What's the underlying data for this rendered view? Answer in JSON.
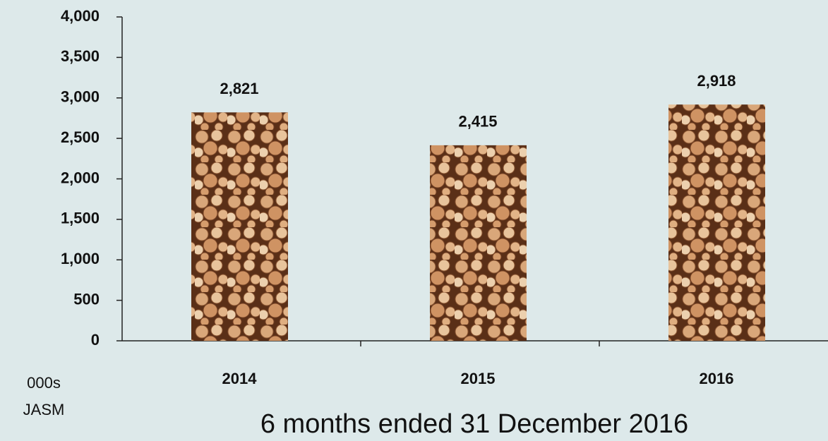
{
  "chart_data": {
    "type": "bar",
    "categories": [
      "2014",
      "2015",
      "2016"
    ],
    "values": [
      2821,
      2415,
      2918
    ],
    "value_labels": [
      "2,821",
      "2,415",
      "2,918"
    ],
    "ylim": [
      0,
      4000
    ],
    "yticks": [
      0,
      500,
      {
        "value": 1000,
        "label": "1,000"
      },
      {
        "value": 1500,
        "label": "1,500"
      },
      {
        "value": 2000,
        "label": "2,000"
      },
      {
        "value": 2500,
        "label": "2,500"
      },
      {
        "value": 3000,
        "label": "3,000"
      },
      {
        "value": 3500,
        "label": "3,500"
      },
      {
        "value": 4000,
        "label": "4,000"
      }
    ],
    "ylabel": [
      "000s",
      "JASM"
    ],
    "xlabel": "6 months ended 31 December 2016"
  }
}
